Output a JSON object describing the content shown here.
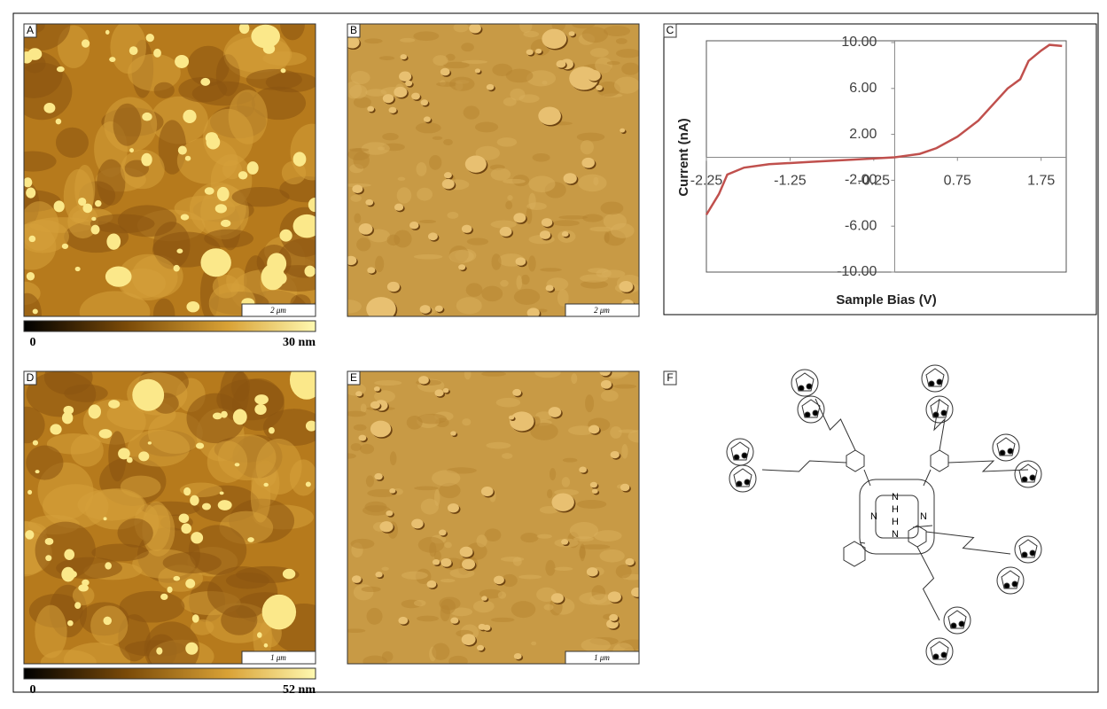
{
  "panels": [
    {
      "label": "A",
      "scale_bar": "2 μm",
      "colorbar_min": "0",
      "colorbar_max": "30 nm"
    },
    {
      "label": "B",
      "scale_bar": "2 μm"
    },
    {
      "label": "C"
    },
    {
      "label": "D",
      "scale_bar": "1 μm",
      "colorbar_min": "0",
      "colorbar_max": "52 nm"
    },
    {
      "label": "E",
      "scale_bar": "1 μm"
    },
    {
      "label": "F"
    }
  ],
  "structure_labels": [
    "N",
    "N",
    "H",
    "H",
    "N",
    "N"
  ],
  "chart_data": {
    "type": "line",
    "x_label": "Sample Bias (V)",
    "y_label": "Current (nA)",
    "x": [
      -2.25,
      -2.1,
      -2.0,
      -1.8,
      -1.5,
      -1.0,
      -0.5,
      0,
      0.3,
      0.5,
      0.75,
      1.0,
      1.2,
      1.35,
      1.5,
      1.6,
      1.75,
      1.85,
      2.0
    ],
    "values": [
      -5.0,
      -3.2,
      -1.5,
      -0.9,
      -0.6,
      -0.4,
      -0.2,
      0,
      0.3,
      0.8,
      1.8,
      3.2,
      4.8,
      6.0,
      6.8,
      8.4,
      9.3,
      9.8,
      9.7
    ],
    "color": "#c0504d",
    "xlim": [
      -2.25,
      2.05
    ],
    "xticks": [
      -2.25,
      -1.25,
      -0.25,
      0.75,
      1.75
    ],
    "ylim": [
      -10,
      10
    ],
    "yticks": [
      {
        "value": 10,
        "label": "10.00"
      },
      {
        "value": 6,
        "label": "6.00"
      },
      {
        "value": 2,
        "label": "2.00"
      },
      {
        "value": -2,
        "label": "-2.00"
      },
      {
        "value": -6,
        "label": "-6.00"
      },
      {
        "value": -10,
        "label": "-10.00"
      }
    ]
  }
}
